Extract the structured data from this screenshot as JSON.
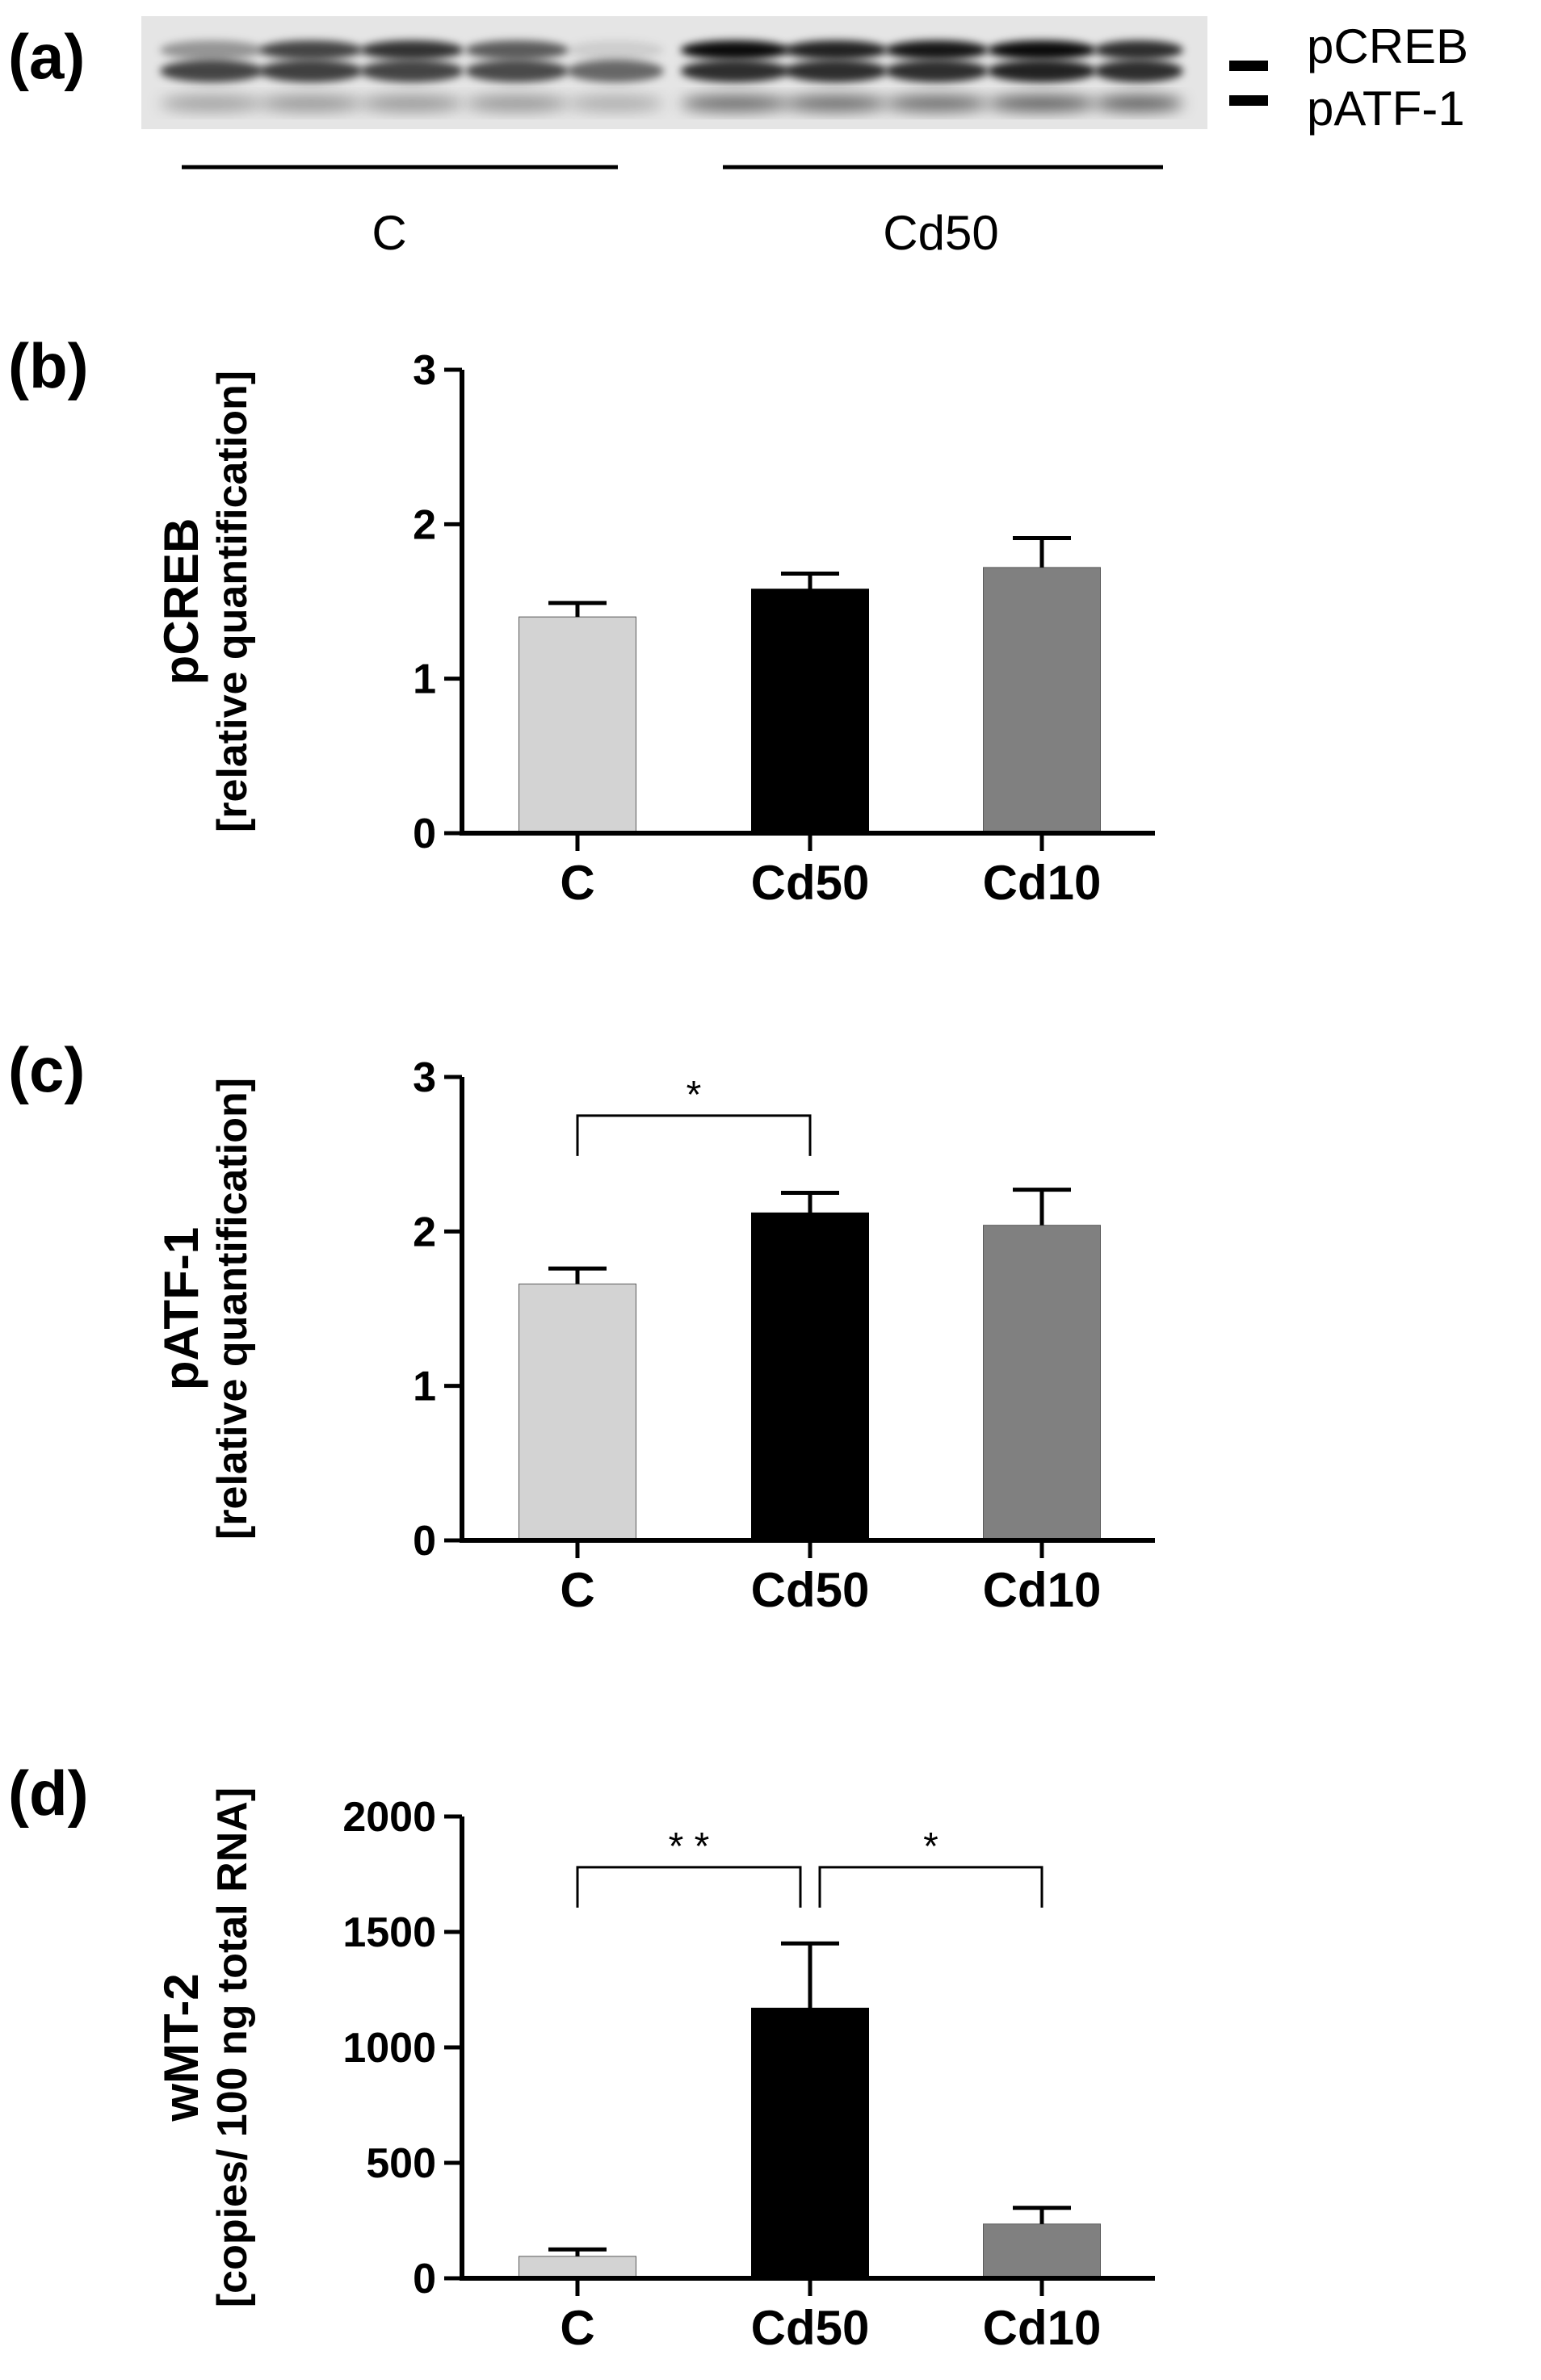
{
  "panels": {
    "a": "(a)",
    "b": "(b)",
    "c": "(c)",
    "d": "(d)"
  },
  "blot": {
    "band_labels": [
      "pCREB",
      "pATF-1"
    ],
    "groups": [
      "C",
      "Cd50"
    ]
  },
  "bar_colors": [
    "#d3d3d3",
    "#000000",
    "#808080"
  ],
  "chart_data": [
    {
      "panel": "(b)",
      "type": "bar",
      "categories": [
        "C",
        "Cd50",
        "Cd10"
      ],
      "values": [
        1.4,
        1.58,
        1.72
      ],
      "errors": [
        0.09,
        0.1,
        0.19
      ],
      "ylabel": "pCREB",
      "ylabel_sub": "[relative quantification]",
      "ylim": [
        0,
        3
      ],
      "yticks": [
        0,
        1,
        2,
        3
      ],
      "significance": []
    },
    {
      "panel": "(c)",
      "type": "bar",
      "categories": [
        "C",
        "Cd50",
        "Cd10"
      ],
      "values": [
        1.66,
        2.12,
        2.04
      ],
      "errors": [
        0.1,
        0.13,
        0.23
      ],
      "ylabel": "pATF-1",
      "ylabel_sub": "[relative quantification]",
      "ylim": [
        0,
        3
      ],
      "yticks": [
        0,
        1,
        2,
        3
      ],
      "significance": [
        {
          "from": 0,
          "to": 1,
          "label": "*",
          "level": 2.75
        }
      ]
    },
    {
      "panel": "(d)",
      "type": "bar",
      "categories": [
        "C",
        "Cd50",
        "Cd10"
      ],
      "values": [
        95,
        1170,
        235
      ],
      "errors": [
        30,
        280,
        70
      ],
      "ylabel": "wMT-2",
      "ylabel_sub": "[copies/ 100 ng total RNA]",
      "ylim": [
        0,
        2000
      ],
      "yticks": [
        0,
        500,
        1000,
        1500,
        2000
      ],
      "significance": [
        {
          "from": 0,
          "to": 1,
          "label": "* *",
          "level": 1780
        },
        {
          "from": 1,
          "to": 2,
          "label": "*",
          "level": 1780
        }
      ]
    }
  ]
}
